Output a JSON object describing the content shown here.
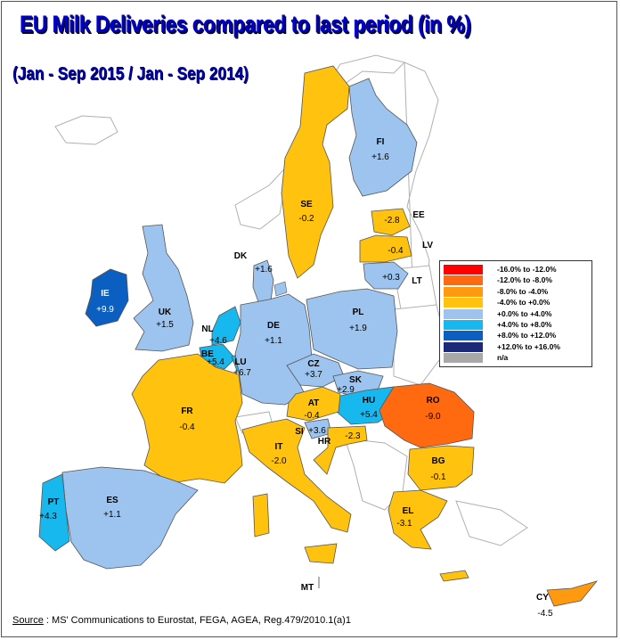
{
  "title": "EU Milk Deliveries compared to last period (in %)",
  "subtitle": "(Jan - Sep 2015  / Jan - Sep 2014)",
  "colors": {
    "neg12_16": "#ff0000",
    "neg8_12": "#ff6a10",
    "neg4_8": "#ff9a10",
    "neg0_4": "#ffc20e",
    "pos0_4": "#9cc4ee",
    "pos4_8": "#17b8ee",
    "pos8_12": "#0a5fc0",
    "pos12_16": "#1c2a78",
    "na": "#a8a8a8"
  },
  "legend": [
    {
      "label": "-16.0%  to  -12.0%",
      "color": "#ff0000"
    },
    {
      "label": "-12.0%  to   -8.0%",
      "color": "#ff6a10"
    },
    {
      "label": "-8.0%  to  -4.0%",
      "color": "#ff9a10"
    },
    {
      "label": "-4.0%  to  +0.0%",
      "color": "#ffc20e"
    },
    {
      "label": "+0.0%  to  +4.0%",
      "color": "#9cc4ee"
    },
    {
      "label": "+4.0%  to  +8.0%",
      "color": "#17b8ee"
    },
    {
      "label": "+8.0%  to  +12.0%",
      "color": "#0a5fc0"
    },
    {
      "label": "+12.0%  to  +16.0%",
      "color": "#1c2a78"
    },
    {
      "label": "n/a",
      "color": "#a8a8a8"
    }
  ],
  "countries": [
    {
      "code": "FI",
      "value": "+1.6"
    },
    {
      "code": "SE",
      "value": "-0.2"
    },
    {
      "code": "EE",
      "value": "-2.8"
    },
    {
      "code": "LV",
      "value": "-0.4"
    },
    {
      "code": "LT",
      "value": "+0.3"
    },
    {
      "code": "DK",
      "value": "+1.6"
    },
    {
      "code": "IE",
      "value": "+9.9"
    },
    {
      "code": "UK",
      "value": "+1.5"
    },
    {
      "code": "NL",
      "value": "+4.6"
    },
    {
      "code": "BE",
      "value": "+5.4"
    },
    {
      "code": "LU",
      "value": "+6.7"
    },
    {
      "code": "DE",
      "value": "+1.1"
    },
    {
      "code": "PL",
      "value": "+1.9"
    },
    {
      "code": "CZ",
      "value": "+3.7"
    },
    {
      "code": "SK",
      "value": "+2.9"
    },
    {
      "code": "HU",
      "value": "+5.4"
    },
    {
      "code": "AT",
      "value": "-0.4"
    },
    {
      "code": "SI",
      "value": "+3.6"
    },
    {
      "code": "HR",
      "value": "-2.3"
    },
    {
      "code": "RO",
      "value": "-9.0"
    },
    {
      "code": "BG",
      "value": "-0.1"
    },
    {
      "code": "FR",
      "value": "-0.4"
    },
    {
      "code": "IT",
      "value": "-2.0"
    },
    {
      "code": "ES",
      "value": "+1.1"
    },
    {
      "code": "PT",
      "value": "+4.3"
    },
    {
      "code": "EL",
      "value": "-3.1"
    },
    {
      "code": "MT",
      "value": ""
    },
    {
      "code": "CY",
      "value": "-4.5"
    }
  ],
  "source": {
    "prefix": "Source",
    "text": " : MS' Communications to Eurostat, FEGA, AGEA, Reg.479/2010.1(a)1"
  }
}
